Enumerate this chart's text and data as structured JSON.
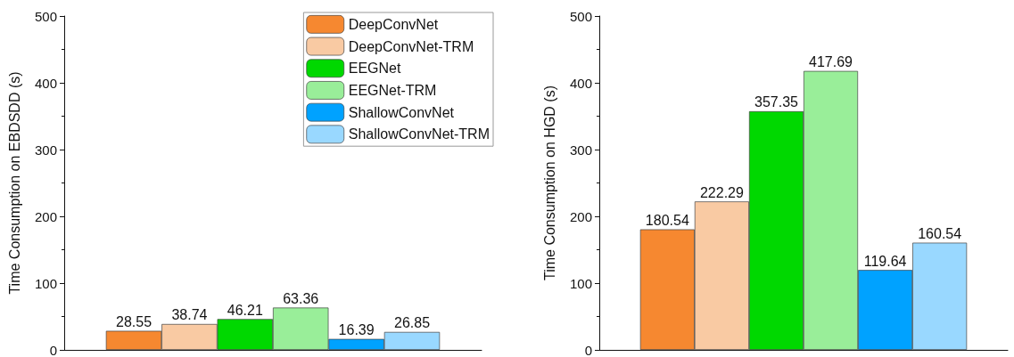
{
  "chart_data": [
    {
      "type": "bar",
      "ylabel": "Time Consumption on EBDSDD (s)",
      "categories": [
        null
      ],
      "ylim": [
        0,
        500
      ],
      "yticks": [
        0,
        100,
        200,
        300,
        400,
        500
      ],
      "grid": false,
      "legend": "top right",
      "data_labels": true,
      "series": [
        {
          "name": "DeepConvNet",
          "color": "#f68830",
          "values": [
            28.55
          ]
        },
        {
          "name": "DeepConvNet-TRM",
          "color": "#f9caa3",
          "values": [
            38.74
          ]
        },
        {
          "name": "EEGNet",
          "color": "#00d800",
          "values": [
            46.21
          ]
        },
        {
          "name": "EEGNet-TRM",
          "color": "#99ee99",
          "values": [
            63.36
          ]
        },
        {
          "name": "ShallowConvNet",
          "color": "#00a2ff",
          "values": [
            16.39
          ]
        },
        {
          "name": "ShallowConvNet-TRM",
          "color": "#99d8ff",
          "values": [
            26.85
          ]
        }
      ]
    },
    {
      "type": "bar",
      "ylabel": "Time Consumption on HGD (s)",
      "categories": [
        null
      ],
      "ylim": [
        0,
        500
      ],
      "yticks": [
        0,
        100,
        200,
        300,
        400,
        500
      ],
      "grid": false,
      "legend": false,
      "data_labels": true,
      "series": [
        {
          "color": "#f68830",
          "values": [
            180.54
          ]
        },
        {
          "color": "#f9caa3",
          "values": [
            222.29
          ]
        },
        {
          "color": "#00d800",
          "values": [
            357.35
          ]
        },
        {
          "color": "#99ee99",
          "values": [
            417.69
          ]
        },
        {
          "color": "#00a2ff",
          "values": [
            119.64
          ]
        },
        {
          "color": "#99d8ff",
          "values": [
            160.54
          ]
        }
      ]
    }
  ]
}
